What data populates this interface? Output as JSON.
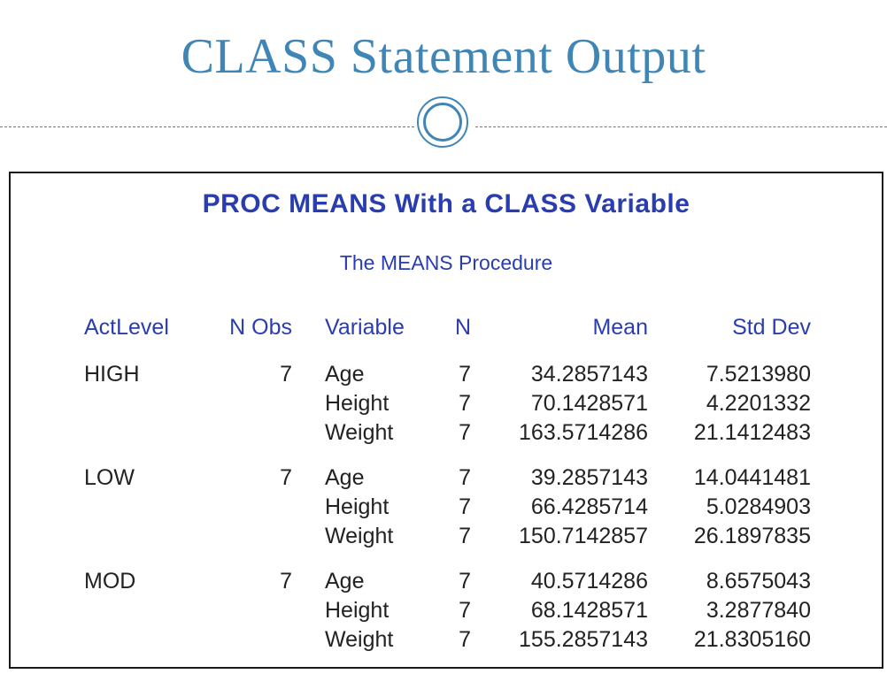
{
  "slide": {
    "title": "CLASS Statement Output"
  },
  "output": {
    "title": "PROC MEANS With a CLASS Variable",
    "subtitle": "The MEANS Procedure",
    "columns": {
      "actlevel": "ActLevel",
      "nobs": "N Obs",
      "variable": "Variable",
      "n": "N",
      "mean": "Mean",
      "stddev": "Std Dev"
    },
    "groups": [
      {
        "actlevel": "HIGH",
        "nobs": "7",
        "rows": [
          {
            "variable": "Age",
            "n": "7",
            "mean": "34.2857143",
            "stddev": "7.5213980"
          },
          {
            "variable": "Height",
            "n": "7",
            "mean": "70.1428571",
            "stddev": "4.2201332"
          },
          {
            "variable": "Weight",
            "n": "7",
            "mean": "163.5714286",
            "stddev": "21.1412483"
          }
        ]
      },
      {
        "actlevel": "LOW",
        "nobs": "7",
        "rows": [
          {
            "variable": "Age",
            "n": "7",
            "mean": "39.2857143",
            "stddev": "14.0441481"
          },
          {
            "variable": "Height",
            "n": "7",
            "mean": "66.4285714",
            "stddev": "5.0284903"
          },
          {
            "variable": "Weight",
            "n": "7",
            "mean": "150.7142857",
            "stddev": "26.1897835"
          }
        ]
      },
      {
        "actlevel": "MOD",
        "nobs": "7",
        "rows": [
          {
            "variable": "Age",
            "n": "7",
            "mean": "40.5714286",
            "stddev": "8.6575043"
          },
          {
            "variable": "Height",
            "n": "7",
            "mean": "68.1428571",
            "stddev": "3.2877840"
          },
          {
            "variable": "Weight",
            "n": "7",
            "mean": "155.2857143",
            "stddev": "21.8305160"
          }
        ]
      }
    ]
  }
}
